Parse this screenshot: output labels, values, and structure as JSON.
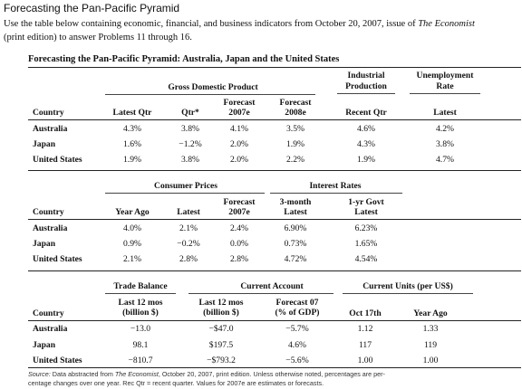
{
  "header": {
    "title": "Forecasting the Pan-Pacific Pyramid",
    "intro_line1_pre": "Use the table below containing economic, financial, and business indicators from October 20, 2007, issue of",
    "intro_line1_italic": "The Economist",
    "intro_line2": "(print edition) to answer Problems 11 through 16."
  },
  "table": {
    "title": "Forecasting the Pan-Pacific Pyramid: Australia, Japan and the United States",
    "countries": [
      "Australia",
      "Japan",
      "United States"
    ],
    "section1": {
      "group_gdp": "Gross Domestic Product",
      "group_ip_line1": "Industrial",
      "group_ip_line2": "Production",
      "group_unemp_line1": "Unemployment",
      "group_unemp_line2": "Rate",
      "country_header": "Country",
      "col_latest_qtr": "Latest Qtr",
      "col_qtr": "Qtr*",
      "col_fc2007_line1": "Forecast",
      "col_fc2007_line2": "2007e",
      "col_fc2008_line1": "Forecast",
      "col_fc2008_line2": "2008e",
      "col_recent_qtr": "Recent Qtr",
      "col_latest": "Latest",
      "rows": [
        [
          "4.3%",
          "3.8%",
          "4.1%",
          "3.5%",
          "4.6%",
          "4.2%"
        ],
        [
          "1.6%",
          "−1.2%",
          "2.0%",
          "1.9%",
          "4.3%",
          "3.8%"
        ],
        [
          "1.9%",
          "3.8%",
          "2.0%",
          "2.2%",
          "1.9%",
          "4.7%"
        ]
      ]
    },
    "section2": {
      "group_cp": "Consumer Prices",
      "group_ir": "Interest Rates",
      "country_header": "Country",
      "col_year_ago": "Year Ago",
      "col_latest": "Latest",
      "col_fc2007_line1": "Forecast",
      "col_fc2007_line2": "2007e",
      "col_3m_line1": "3-month",
      "col_3m_line2": "Latest",
      "col_1yr_line1": "1-yr Govt",
      "col_1yr_line2": "Latest",
      "rows": [
        [
          "4.0%",
          "2.1%",
          "2.4%",
          "6.90%",
          "6.23%"
        ],
        [
          "0.9%",
          "−0.2%",
          "0.0%",
          "0.73%",
          "1.65%"
        ],
        [
          "2.1%",
          "2.8%",
          "2.8%",
          "4.72%",
          "4.54%"
        ]
      ]
    },
    "section3": {
      "group_tb": "Trade Balance",
      "group_ca": "Current Account",
      "group_cu": "Current Units (per US$)",
      "country_header": "Country",
      "col_tb_line1": "Last 12 mos",
      "col_tb_line2": "(billion $)",
      "col_ca_line1": "Last 12 mos",
      "col_ca_line2": "(billion $)",
      "col_fc07_line1": "Forecast 07",
      "col_fc07_line2": "(% of GDP)",
      "col_oct17": "Oct 17th",
      "col_year_ago": "Year Ago",
      "rows": [
        [
          "−13.0",
          "−$47.0",
          "−5.7%",
          "1.12",
          "1.33"
        ],
        [
          "98.1",
          "$197.5",
          "4.6%",
          "117",
          "119"
        ],
        [
          "−810.7",
          "−$793.2",
          "−5.6%",
          "1.00",
          "1.00"
        ]
      ]
    },
    "source_label": "Source:",
    "source_pre": "Data abstracted from",
    "source_italic": "The Economist",
    "source_post": ", October 20, 2007, print edition. Unless otherwise noted, percentages are per-",
    "source_line2": "centage changes over one year. Rec Qtr = recent quarter. Values for 2007e are estimates or forecasts."
  }
}
